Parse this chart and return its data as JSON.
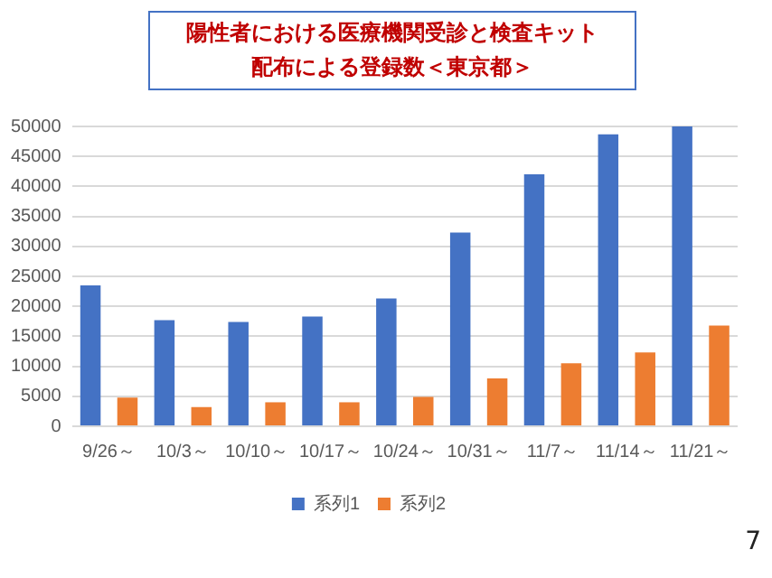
{
  "chart_data": {
    "type": "bar",
    "title": "陽性者における医療機関受診と検査キット配布による登録数＜東京都＞",
    "categories": [
      "9/26～",
      "10/3～",
      "10/10～",
      "10/17～",
      "10/24～",
      "10/31～",
      "11/7～",
      "11/14～",
      "11/21～"
    ],
    "series": [
      {
        "name": "系列1",
        "color": "#4472c4",
        "values": [
          23500,
          17700,
          17400,
          18300,
          21300,
          32300,
          42000,
          48700,
          50000
        ]
      },
      {
        "name": "系列2",
        "color": "#ed7d31",
        "values": [
          4800,
          3200,
          4000,
          4000,
          4900,
          8000,
          10500,
          12300,
          16800
        ]
      }
    ],
    "ylim": [
      0,
      50000
    ],
    "yticks": [
      0,
      5000,
      10000,
      15000,
      20000,
      25000,
      30000,
      35000,
      40000,
      45000,
      50000
    ],
    "grid": "y",
    "legend": "bottom",
    "annotations": [
      "7"
    ]
  }
}
